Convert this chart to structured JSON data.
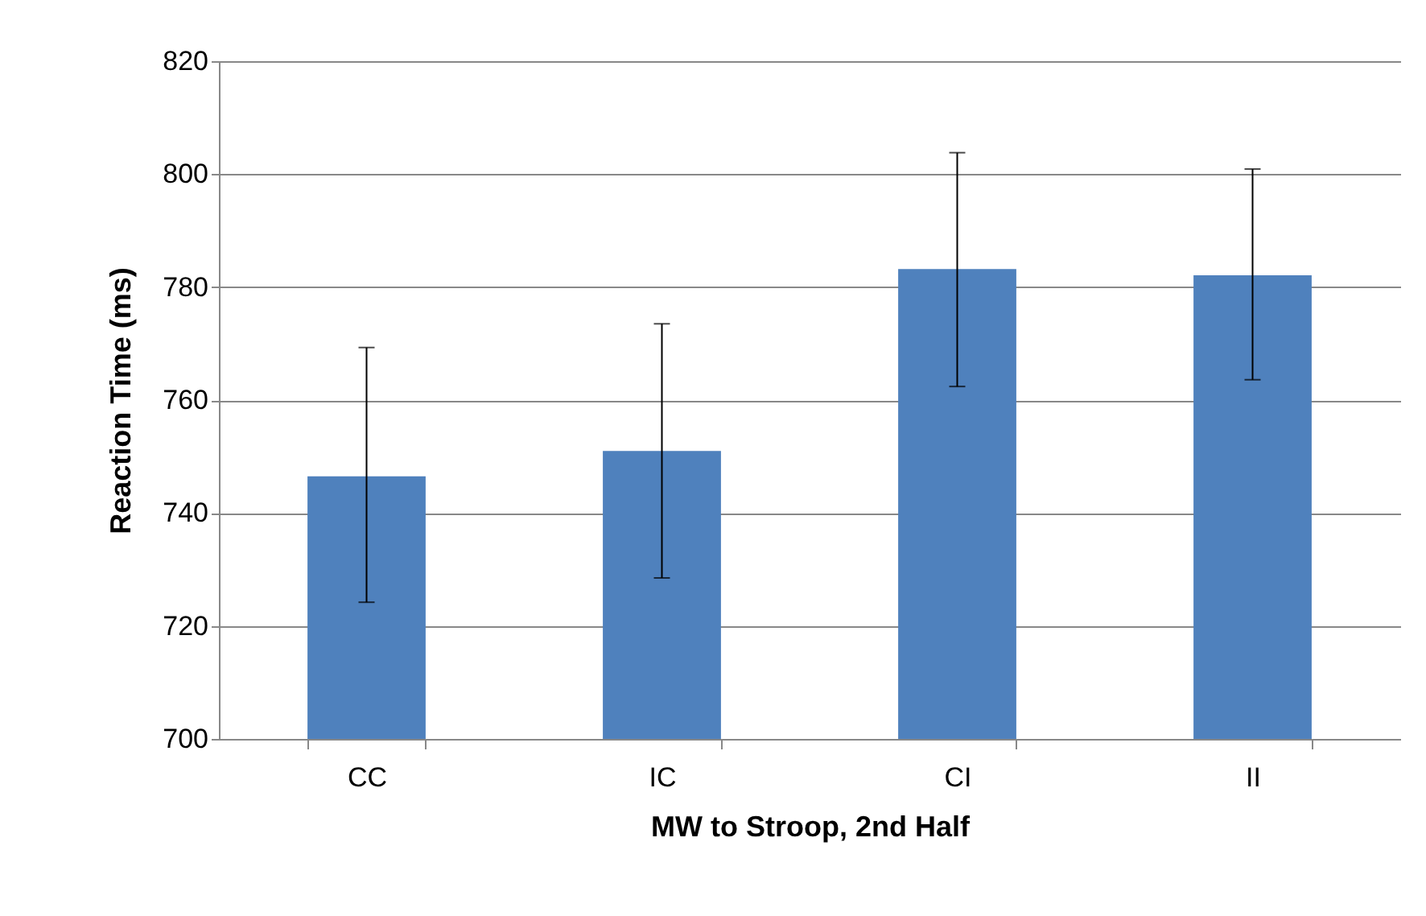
{
  "chart_data": {
    "type": "bar",
    "xlabel": "MW to Stroop, 2nd Half",
    "ylabel": "Reaction Time (ms)",
    "categories": [
      "CC",
      "IC",
      "CI",
      "II"
    ],
    "values": [
      746.5,
      751,
      783.2,
      782.1
    ],
    "errors": [
      [
        724.2,
        769.3
      ],
      [
        728.5,
        773.5
      ],
      [
        762.4,
        803.8
      ],
      [
        763.6,
        800.9
      ]
    ],
    "color": "#4f81bd",
    "ylim": [
      700,
      820
    ],
    "yticks": [
      700,
      720,
      740,
      760,
      780,
      800,
      820
    ],
    "grid": "y"
  }
}
